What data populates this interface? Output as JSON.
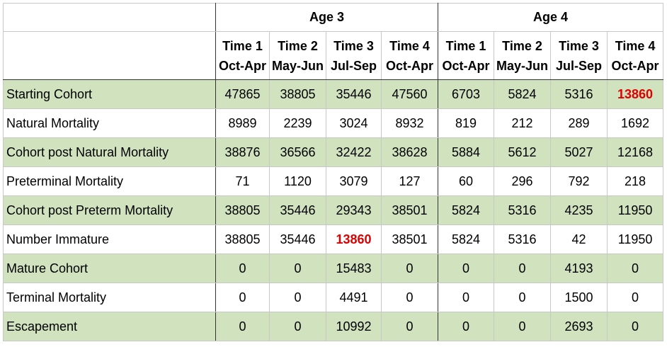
{
  "header": {
    "group1": "Age 3",
    "group2": "Age 4",
    "periods": [
      {
        "time": "Time 1",
        "months": "Oct-Apr"
      },
      {
        "time": "Time 2",
        "months": "May-Jun"
      },
      {
        "time": "Time 3",
        "months": "Jul-Sep"
      },
      {
        "time": "Time 4",
        "months": "Oct-Apr"
      },
      {
        "time": "Time 1",
        "months": "Oct-Apr"
      },
      {
        "time": "Time 2",
        "months": "May-Jun"
      },
      {
        "time": "Time 3",
        "months": "Jul-Sep"
      },
      {
        "time": "Time 4",
        "months": "Oct-Apr"
      }
    ]
  },
  "rows": [
    {
      "label": "Starting Cohort",
      "values": [
        "47865",
        "38805",
        "35446",
        "47560",
        "6703",
        "5824",
        "5316",
        "13860"
      ],
      "highlight": [
        7
      ],
      "green": true
    },
    {
      "label": "Natural Mortality",
      "values": [
        "8989",
        "2239",
        "3024",
        "8932",
        "819",
        "212",
        "289",
        "1692"
      ],
      "highlight": [],
      "green": false
    },
    {
      "label": "Cohort post Natural Mortality",
      "values": [
        "38876",
        "36566",
        "32422",
        "38628",
        "5884",
        "5612",
        "5027",
        "12168"
      ],
      "highlight": [],
      "green": true
    },
    {
      "label": "Preterminal Mortality",
      "values": [
        "71",
        "1120",
        "3079",
        "127",
        "60",
        "296",
        "792",
        "218"
      ],
      "highlight": [],
      "green": false
    },
    {
      "label": "Cohort post Preterm Mortality",
      "values": [
        "38805",
        "35446",
        "29343",
        "38501",
        "5824",
        "5316",
        "4235",
        "11950"
      ],
      "highlight": [],
      "green": true
    },
    {
      "label": "Number Immature",
      "values": [
        "38805",
        "35446",
        "13860",
        "38501",
        "5824",
        "5316",
        "42",
        "11950"
      ],
      "highlight": [
        2
      ],
      "green": false
    },
    {
      "label": "Mature Cohort",
      "values": [
        "0",
        "0",
        "15483",
        "0",
        "0",
        "0",
        "4193",
        "0"
      ],
      "highlight": [],
      "green": true
    },
    {
      "label": "Terminal Mortality",
      "values": [
        "0",
        "0",
        "4491",
        "0",
        "0",
        "0",
        "1500",
        "0"
      ],
      "highlight": [],
      "green": false
    },
    {
      "label": "Escapement",
      "values": [
        "0",
        "0",
        "10992",
        "0",
        "0",
        "0",
        "2693",
        "0"
      ],
      "highlight": [],
      "green": true
    }
  ],
  "colors": {
    "green_row": "#d0e2be",
    "highlight_text": "#e00000"
  }
}
